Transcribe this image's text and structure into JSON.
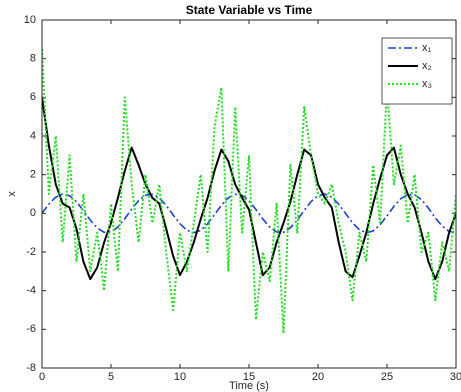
{
  "chart_data": {
    "type": "line",
    "title": "State Variable vs Time",
    "x_label": "Time (s)",
    "y_label": "x",
    "x": [
      0,
      0.5,
      1,
      1.5,
      2,
      2.5,
      3,
      3.5,
      4,
      4.5,
      5,
      5.5,
      6,
      6.5,
      7,
      7.5,
      8,
      8.5,
      9,
      9.5,
      10,
      10.5,
      11,
      11.5,
      12,
      12.5,
      13,
      13.5,
      14,
      14.5,
      15,
      15.5,
      16,
      16.5,
      17,
      17.5,
      18,
      18.5,
      19,
      19.5,
      20,
      20.5,
      21,
      21.5,
      22,
      22.5,
      23,
      23.5,
      24,
      24.5,
      25,
      25.5,
      26,
      26.5,
      27,
      27.5,
      28,
      28.5,
      29,
      29.5,
      30
    ],
    "series": [
      {
        "name": "x₁",
        "color": "#1f3fd4",
        "dash": "8,3,2,3",
        "width": 1.6,
        "values": [
          0,
          0.48,
          0.84,
          1.0,
          0.91,
          0.6,
          0.14,
          -0.35,
          -0.76,
          -0.98,
          -0.96,
          -0.71,
          -0.28,
          0.22,
          0.66,
          0.94,
          0.99,
          0.8,
          0.41,
          -0.08,
          -0.54,
          -0.88,
          -1.0,
          -0.88,
          -0.54,
          -0.07,
          0.42,
          0.8,
          0.99,
          0.93,
          0.65,
          0.2,
          -0.29,
          -0.71,
          -0.96,
          -0.98,
          -0.75,
          -0.34,
          0.15,
          0.61,
          0.91,
          1.0,
          0.84,
          0.47,
          -0.01,
          -0.49,
          -0.85,
          -1.0,
          -0.91,
          -0.59,
          -0.13,
          0.36,
          0.76,
          0.97,
          0.96,
          0.71,
          0.27,
          -0.24,
          -0.66,
          -0.94,
          -0.99
        ]
      },
      {
        "name": "x₂",
        "color": "#000000",
        "dash": "none",
        "width": 2,
        "values": [
          6,
          3.5,
          1.5,
          0.5,
          0.3,
          -0.8,
          -2.5,
          -3.4,
          -2.8,
          -1.5,
          -0.5,
          0.8,
          2.2,
          3.4,
          2.5,
          1.5,
          0.8,
          0.5,
          -0.8,
          -2.2,
          -3.2,
          -2.5,
          -1.5,
          -0.3,
          0.8,
          2.2,
          3.3,
          2.7,
          1.5,
          0.8,
          0.2,
          -1.5,
          -3.2,
          -2.8,
          -1.5,
          -0.5,
          0.6,
          2.0,
          3.3,
          3.0,
          1.5,
          0.8,
          0.3,
          -1.5,
          -3.0,
          -3.3,
          -2.2,
          -1.0,
          0.5,
          1.8,
          3.0,
          3.4,
          2.0,
          1.0,
          0.3,
          -1.0,
          -2.5,
          -3.4,
          -2.5,
          -1.0,
          0
        ]
      },
      {
        "name": "x₃",
        "color": "#22dd22",
        "dash": "2,2",
        "width": 2,
        "values": [
          8.5,
          1,
          4,
          -1.5,
          3,
          -2.5,
          1,
          -3,
          -1,
          -4,
          0.5,
          -3,
          6,
          1.5,
          -1.5,
          2,
          -0.5,
          1.5,
          -2,
          -5,
          -1,
          -3,
          -0.5,
          2,
          -2,
          4.5,
          6.5,
          -3,
          5.5,
          -1,
          3,
          -5.5,
          -2,
          -3.5,
          0.5,
          -6.2,
          2.5,
          -1,
          5.5,
          3,
          1,
          0.5,
          1.5,
          -0.5,
          -2,
          -4.5,
          -1,
          -2.5,
          2.5,
          -0.5,
          6.5,
          1.5,
          3.5,
          -0.5,
          2,
          -2,
          -1,
          -4.5,
          -1.5,
          -3,
          1
        ]
      }
    ],
    "xlim": [
      0,
      30
    ],
    "xticks": [
      0,
      5,
      10,
      15,
      20,
      25,
      30
    ],
    "ylim": [
      -8,
      10
    ],
    "yticks": [
      -8,
      -6,
      -4,
      -2,
      0,
      2,
      4,
      6,
      8,
      10
    ],
    "grid": false,
    "legend": "upper right"
  }
}
